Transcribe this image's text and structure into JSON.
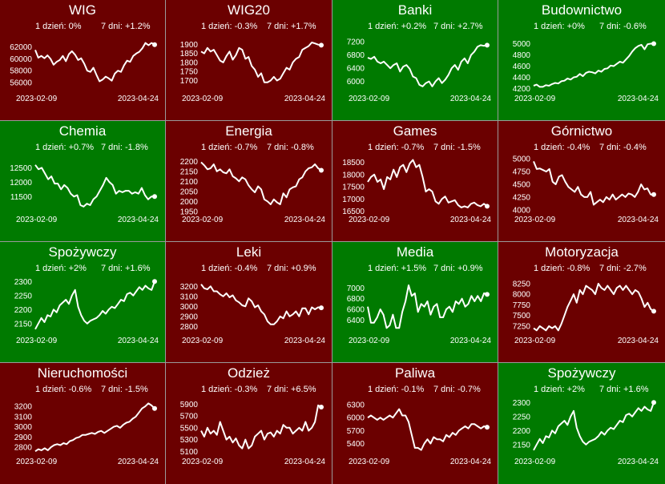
{
  "colors": {
    "up": "#007a00",
    "down": "#6b0000",
    "line": "#ffffff",
    "border": "#9a9a9a"
  },
  "labels": {
    "day": "1 dzień:",
    "week": "7 dni:"
  },
  "chart_data": [
    {
      "type": "line",
      "title": "WIG",
      "status": "down",
      "day_change": "0%",
      "week_change": "+1.2%",
      "x_start": "2023-02-09",
      "x_end": "2023-04-24",
      "ylim": [
        54500,
        64000
      ],
      "yticks": [
        62000,
        60000,
        58000,
        56000
      ],
      "values": [
        61500,
        60200,
        60500,
        60100,
        60600,
        60000,
        59000,
        59500,
        59800,
        60500,
        59600,
        60800,
        61300,
        60700,
        59800,
        60100,
        59200,
        58000,
        57800,
        58500,
        57300,
        56200,
        56500,
        57000,
        56700,
        56300,
        57500,
        58000,
        57800,
        58900,
        59700,
        59500,
        60500,
        60900,
        61200,
        61800,
        62700,
        62300,
        62700,
        62400
      ]
    },
    {
      "type": "line",
      "title": "WIG20",
      "status": "down",
      "day_change": "-0.3%",
      "week_change": "+1.7%",
      "x_start": "2023-02-09",
      "x_end": "2023-04-24",
      "ylim": [
        1640,
        1950
      ],
      "yticks": [
        1900,
        1850,
        1800,
        1750,
        1700
      ],
      "values": [
        1860,
        1850,
        1880,
        1860,
        1870,
        1840,
        1810,
        1800,
        1835,
        1860,
        1815,
        1840,
        1880,
        1870,
        1820,
        1830,
        1780,
        1760,
        1720,
        1740,
        1690,
        1690,
        1700,
        1720,
        1700,
        1710,
        1740,
        1770,
        1760,
        1800,
        1820,
        1830,
        1870,
        1880,
        1890,
        1910,
        1905,
        1898,
        1895
      ]
    },
    {
      "type": "line",
      "title": "Banki",
      "status": "up",
      "day_change": "+0.2%",
      "week_change": "+2.7%",
      "x_start": "2023-02-09",
      "x_end": "2023-04-24",
      "ylim": [
        5700,
        7400
      ],
      "yticks": [
        7200,
        6800,
        6400,
        6000
      ],
      "values": [
        6720,
        6680,
        6750,
        6600,
        6550,
        6600,
        6500,
        6400,
        6500,
        6550,
        6300,
        6450,
        6500,
        6380,
        6150,
        6100,
        5900,
        5850,
        5950,
        6000,
        5850,
        6000,
        6100,
        5950,
        6050,
        6200,
        6400,
        6500,
        6350,
        6600,
        6700,
        6550,
        6800,
        6900,
        7050,
        7100,
        7080,
        7100
      ]
    },
    {
      "type": "line",
      "title": "Budownictwo",
      "status": "up",
      "day_change": "+0%",
      "week_change": "-0.6%",
      "x_start": "2023-02-09",
      "x_end": "2023-04-24",
      "ylim": [
        4150,
        5150
      ],
      "yticks": [
        5000,
        4800,
        4600,
        4400,
        4200
      ],
      "values": [
        4250,
        4270,
        4230,
        4230,
        4260,
        4250,
        4280,
        4300,
        4290,
        4330,
        4340,
        4380,
        4360,
        4400,
        4410,
        4460,
        4420,
        4480,
        4500,
        4490,
        4470,
        4520,
        4500,
        4550,
        4560,
        4610,
        4600,
        4640,
        4680,
        4660,
        4720,
        4780,
        4860,
        4920,
        4960,
        4980,
        4900,
        4990,
        5000,
        5000
      ]
    },
    {
      "type": "line",
      "title": "Chemia",
      "status": "up",
      "day_change": "+0.7%",
      "week_change": "-1.8%",
      "x_start": "2023-02-09",
      "x_end": "2023-04-24",
      "ylim": [
        10950,
        12900
      ],
      "yticks": [
        12500,
        12000,
        11500
      ],
      "values": [
        12600,
        12450,
        12500,
        12300,
        12100,
        12200,
        11950,
        11950,
        11750,
        11900,
        11800,
        11600,
        11500,
        11550,
        11200,
        11150,
        11250,
        11200,
        11400,
        11500,
        11700,
        11900,
        12150,
        12000,
        11900,
        11600,
        11700,
        11650,
        11700,
        11700,
        11600,
        11650,
        11600,
        11800,
        11550,
        11400,
        11500,
        11500
      ]
    },
    {
      "type": "line",
      "title": "Energia",
      "status": "down",
      "day_change": "-0.7%",
      "week_change": "-0.8%",
      "x_start": "2023-02-09",
      "x_end": "2023-04-24",
      "ylim": [
        1945,
        2225
      ],
      "yticks": [
        2200,
        2150,
        2100,
        2050,
        2000,
        1950
      ],
      "values": [
        2195,
        2180,
        2160,
        2165,
        2185,
        2150,
        2160,
        2145,
        2140,
        2160,
        2125,
        2115,
        2100,
        2120,
        2110,
        2080,
        2060,
        2045,
        2075,
        2060,
        2010,
        2000,
        1985,
        2010,
        1995,
        1985,
        2040,
        2020,
        2060,
        2070,
        2075,
        2110,
        2120,
        2150,
        2165,
        2170,
        2185,
        2165,
        2155
      ]
    },
    {
      "type": "line",
      "title": "Games",
      "status": "down",
      "day_change": "-0.7%",
      "week_change": "-1.5%",
      "x_start": "2023-02-09",
      "x_end": "2023-04-24",
      "ylim": [
        16450,
        18750
      ],
      "yticks": [
        18500,
        18000,
        17500,
        17000,
        16500
      ],
      "values": [
        17700,
        17900,
        18000,
        17700,
        17800,
        17400,
        17900,
        17800,
        18200,
        17900,
        18300,
        18400,
        18100,
        18450,
        18600,
        18300,
        18400,
        17900,
        17300,
        17400,
        17300,
        16900,
        16800,
        17000,
        17100,
        16850,
        16900,
        16950,
        16750,
        16650,
        16700,
        16650,
        16800,
        16850,
        16750,
        16700,
        16800,
        16700
      ]
    },
    {
      "type": "line",
      "title": "Górnictwo",
      "status": "down",
      "day_change": "-0.4%",
      "week_change": "-0.4%",
      "x_start": "2023-02-09",
      "x_end": "2023-04-24",
      "ylim": [
        3950,
        5050
      ],
      "yticks": [
        5000,
        4750,
        4500,
        4250,
        4000
      ],
      "values": [
        4950,
        4800,
        4810,
        4780,
        4750,
        4800,
        4550,
        4500,
        4650,
        4680,
        4550,
        4450,
        4400,
        4350,
        4450,
        4300,
        4250,
        4250,
        4350,
        4100,
        4150,
        4200,
        4150,
        4250,
        4200,
        4300,
        4200,
        4250,
        4300,
        4250,
        4320,
        4300,
        4250,
        4350,
        4500,
        4400,
        4420,
        4300,
        4300
      ]
    },
    {
      "type": "line",
      "title": "Spożywczy",
      "status": "up",
      "day_change": "+2%",
      "week_change": "+1.6%",
      "x_start": "2023-02-09",
      "x_end": "2023-04-24",
      "ylim": [
        2115,
        2315
      ],
      "yticks": [
        2300,
        2250,
        2200,
        2150
      ],
      "values": [
        2130,
        2150,
        2170,
        2155,
        2180,
        2175,
        2200,
        2190,
        2215,
        2225,
        2235,
        2220,
        2250,
        2270,
        2210,
        2180,
        2160,
        2150,
        2160,
        2165,
        2170,
        2180,
        2195,
        2185,
        2200,
        2210,
        2205,
        2220,
        2235,
        2230,
        2255,
        2260,
        2250,
        2265,
        2280,
        2270,
        2285,
        2275,
        2270,
        2300
      ]
    },
    {
      "type": "line",
      "title": "Leki",
      "status": "down",
      "day_change": "-0.4%",
      "week_change": "+0.9%",
      "x_start": "2023-02-09",
      "x_end": "2023-04-24",
      "ylim": [
        2730,
        3290
      ],
      "yticks": [
        3200,
        3100,
        3000,
        2900,
        2800
      ],
      "values": [
        3220,
        3180,
        3170,
        3200,
        3150,
        3150,
        3120,
        3100,
        3130,
        3090,
        3110,
        3060,
        3040,
        3010,
        3000,
        3080,
        3050,
        2990,
        3010,
        2950,
        2920,
        2850,
        2820,
        2820,
        2850,
        2900,
        2880,
        2950,
        2900,
        2920,
        2950,
        2900,
        2980,
        2980,
        2920,
        2990,
        2970,
        2990,
        2985
      ]
    },
    {
      "type": "line",
      "title": "Media",
      "status": "up",
      "day_change": "+1.5%",
      "week_change": "+0.9%",
      "x_start": "2023-02-09",
      "x_end": "2023-04-24",
      "ylim": [
        6150,
        7200
      ],
      "yticks": [
        7000,
        6800,
        6600,
        6400
      ],
      "values": [
        6650,
        6350,
        6350,
        6450,
        6600,
        6500,
        6250,
        6300,
        6500,
        6250,
        6250,
        6550,
        6750,
        7050,
        6850,
        6900,
        6550,
        6700,
        6650,
        6750,
        6500,
        6650,
        6700,
        6450,
        6450,
        6600,
        6650,
        6550,
        6750,
        6700,
        6800,
        6650,
        6700,
        6850,
        6750,
        6850,
        6750,
        6900,
        6880
      ]
    },
    {
      "type": "line",
      "title": "Motoryzacja",
      "status": "down",
      "day_change": "-0.8%",
      "week_change": "-2.7%",
      "x_start": "2023-02-09",
      "x_end": "2023-04-24",
      "ylim": [
        7080,
        8400
      ],
      "yticks": [
        8250,
        8000,
        7750,
        7500,
        7250
      ],
      "values": [
        7200,
        7150,
        7250,
        7200,
        7150,
        7250,
        7200,
        7250,
        7150,
        7300,
        7500,
        7700,
        7850,
        8000,
        7800,
        8100,
        8000,
        8200,
        8150,
        8100,
        8000,
        8250,
        8150,
        8100,
        8200,
        8100,
        8000,
        8150,
        8200,
        8100,
        8200,
        8100,
        8000,
        8100,
        8050,
        7900,
        7700,
        7800,
        7650,
        7600
      ]
    },
    {
      "type": "line",
      "title": "Nieruchomości",
      "status": "down",
      "day_change": "-0.6%",
      "week_change": "-1.5%",
      "x_start": "2023-02-09",
      "x_end": "2023-04-24",
      "ylim": [
        2730,
        3280
      ],
      "yticks": [
        3200,
        3100,
        3000,
        2900,
        2800
      ],
      "values": [
        2760,
        2780,
        2770,
        2790,
        2770,
        2800,
        2820,
        2830,
        2820,
        2840,
        2830,
        2860,
        2870,
        2890,
        2900,
        2920,
        2920,
        2930,
        2940,
        2930,
        2950,
        2960,
        2940,
        2960,
        2980,
        3000,
        3010,
        2990,
        3020,
        3040,
        3050,
        3080,
        3100,
        3140,
        3180,
        3200,
        3230,
        3210,
        3180
      ]
    },
    {
      "type": "line",
      "title": "Odzież",
      "status": "down",
      "day_change": "-0.3%",
      "week_change": "+6.5%",
      "x_start": "2023-02-09",
      "x_end": "2023-04-24",
      "ylim": [
        5050,
        6000
      ],
      "yticks": [
        5900,
        5700,
        5500,
        5300,
        5100
      ],
      "values": [
        5450,
        5350,
        5500,
        5400,
        5450,
        5380,
        5600,
        5450,
        5300,
        5350,
        5250,
        5320,
        5200,
        5150,
        5300,
        5150,
        5200,
        5350,
        5400,
        5450,
        5300,
        5400,
        5420,
        5350,
        5450,
        5400,
        5550,
        5500,
        5500,
        5400,
        5450,
        5500,
        5450,
        5600,
        5450,
        5500,
        5600,
        5880,
        5850
      ]
    },
    {
      "type": "line",
      "title": "Paliwa",
      "status": "down",
      "day_change": "-0.1%",
      "week_change": "-0.7%",
      "x_start": "2023-02-09",
      "x_end": "2023-04-24",
      "ylim": [
        5150,
        6450
      ],
      "yticks": [
        6300,
        6000,
        5700,
        5400
      ],
      "values": [
        6000,
        6050,
        6000,
        5950,
        6000,
        5950,
        6000,
        6050,
        6000,
        6100,
        6200,
        6050,
        6050,
        5900,
        5600,
        5300,
        5300,
        5250,
        5400,
        5500,
        5400,
        5550,
        5500,
        5500,
        5450,
        5600,
        5550,
        5650,
        5600,
        5700,
        5750,
        5800,
        5750,
        5850,
        5850,
        5800,
        5750,
        5800,
        5780
      ]
    },
    {
      "type": "line",
      "title": "Spożywczy",
      "status": "up",
      "day_change": "+2%",
      "week_change": "+1.6%",
      "x_start": "2023-02-09",
      "x_end": "2023-04-24",
      "ylim": [
        2115,
        2315
      ],
      "yticks": [
        2300,
        2250,
        2200,
        2150
      ],
      "values": [
        2130,
        2150,
        2170,
        2155,
        2180,
        2175,
        2200,
        2190,
        2215,
        2225,
        2235,
        2220,
        2250,
        2270,
        2210,
        2180,
        2160,
        2150,
        2160,
        2165,
        2170,
        2180,
        2195,
        2185,
        2200,
        2210,
        2205,
        2220,
        2235,
        2230,
        2255,
        2260,
        2250,
        2265,
        2280,
        2270,
        2285,
        2275,
        2270,
        2300
      ]
    }
  ]
}
